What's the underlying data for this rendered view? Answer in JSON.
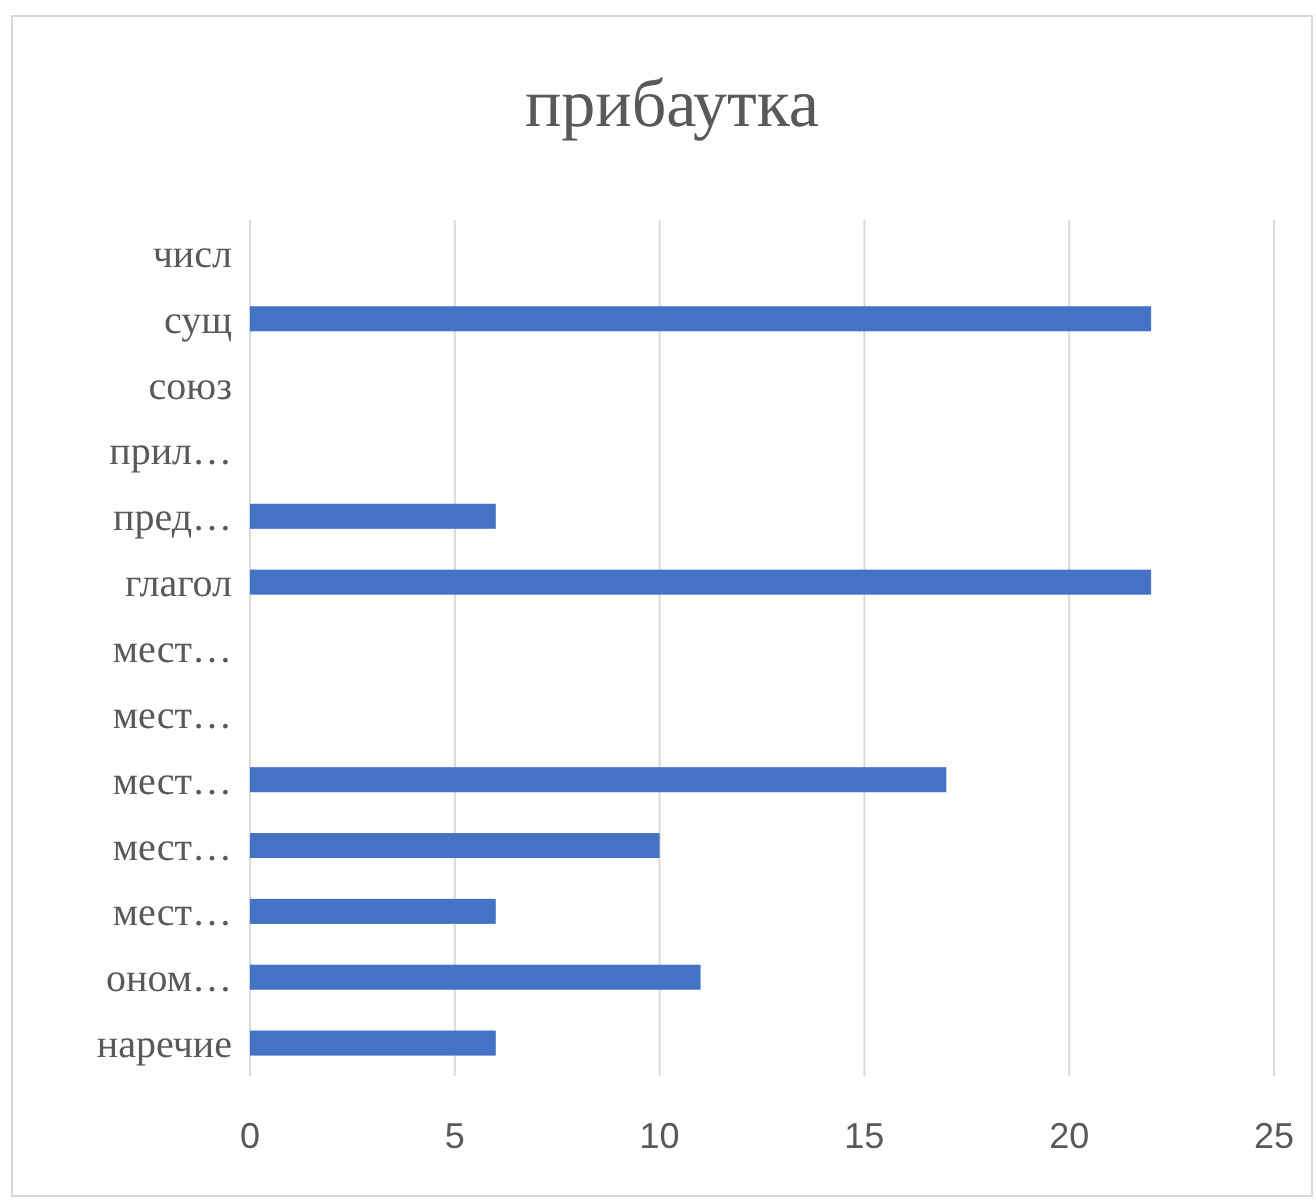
{
  "chart_data": {
    "type": "bar",
    "orientation": "horizontal",
    "title": "прибаутка",
    "categories": [
      "числ",
      "сущ",
      "союз",
      "прил…",
      "пред…",
      "глагол",
      "мест…",
      "мест…",
      "мест…",
      "мест…",
      "мест…",
      "оном…",
      "наречие"
    ],
    "values": [
      null,
      22,
      null,
      null,
      6,
      22,
      null,
      null,
      17,
      10,
      6,
      11,
      6
    ],
    "color": "#4472c4",
    "xlim": [
      0,
      25
    ],
    "xticks": [
      0,
      5,
      10,
      15,
      20,
      25
    ],
    "grid": "x"
  }
}
